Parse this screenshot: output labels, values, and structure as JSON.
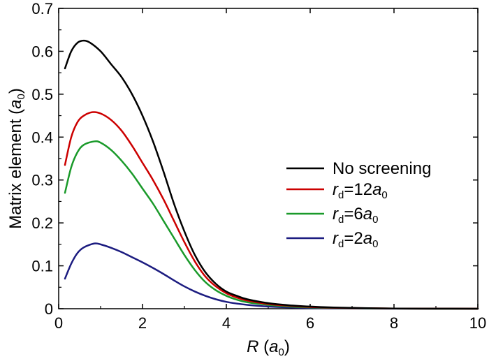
{
  "chart_data": {
    "type": "line",
    "title": "",
    "xlabel": {
      "var": "R",
      "unit_open": "(",
      "unit_var": "a",
      "unit_sub": "0",
      "unit_close": ")"
    },
    "ylabel": {
      "text": "Matrix element ",
      "unit_open": "(",
      "unit_var": "a",
      "unit_sub": "0",
      "unit_close": ")"
    },
    "xlim": [
      0,
      10
    ],
    "ylim": [
      0,
      0.7
    ],
    "xticks": [
      "0",
      "2",
      "4",
      "6",
      "8",
      "10"
    ],
    "yticks": [
      "0",
      "0.1",
      "0.2",
      "0.3",
      "0.4",
      "0.5",
      "0.6",
      "0.7"
    ],
    "grid": false,
    "legend_position": "center-right",
    "series": [
      {
        "name": "No screening",
        "legend": {
          "plain": "No screening"
        },
        "color": "#000000",
        "x": [
          0.15,
          0.3,
          0.45,
          0.6,
          0.75,
          1.0,
          1.25,
          1.5,
          1.75,
          2.0,
          2.25,
          2.5,
          2.75,
          3.0,
          3.25,
          3.5,
          3.75,
          4.0,
          4.25,
          4.5,
          5.0,
          5.5,
          6.0,
          6.5,
          7.0,
          7.5,
          8.0,
          9.0,
          10.0
        ],
        "y": [
          0.56,
          0.6,
          0.62,
          0.625,
          0.62,
          0.6,
          0.57,
          0.54,
          0.5,
          0.45,
          0.39,
          0.32,
          0.245,
          0.18,
          0.125,
          0.085,
          0.058,
          0.04,
          0.03,
          0.022,
          0.013,
          0.008,
          0.005,
          0.003,
          0.002,
          0.001,
          0.0005,
          0.0002,
          0.0
        ]
      },
      {
        "name": "rd=12a0",
        "legend": {
          "var": "r",
          "sub": "d",
          "eq": "=12",
          "unit_var": "a",
          "unit_sub": "0"
        },
        "color": "#cc0000",
        "x": [
          0.15,
          0.3,
          0.45,
          0.6,
          0.8,
          1.0,
          1.25,
          1.5,
          1.75,
          2.0,
          2.25,
          2.5,
          2.75,
          3.0,
          3.25,
          3.5,
          3.75,
          4.0,
          4.25,
          4.5,
          5.0,
          5.5,
          6.0,
          6.5,
          7.0,
          7.5,
          8.0,
          9.0,
          10.0
        ],
        "y": [
          0.335,
          0.4,
          0.435,
          0.45,
          0.458,
          0.455,
          0.44,
          0.415,
          0.38,
          0.34,
          0.3,
          0.255,
          0.205,
          0.155,
          0.11,
          0.075,
          0.052,
          0.036,
          0.026,
          0.019,
          0.011,
          0.007,
          0.004,
          0.0025,
          0.0015,
          0.001,
          0.0005,
          0.0002,
          0.0
        ]
      },
      {
        "name": "rd=6a0",
        "legend": {
          "var": "r",
          "sub": "d",
          "eq": "=6",
          "unit_var": "a",
          "unit_sub": "0"
        },
        "color": "#1a9a2a",
        "x": [
          0.15,
          0.3,
          0.45,
          0.6,
          0.85,
          1.0,
          1.25,
          1.5,
          1.75,
          2.0,
          2.25,
          2.5,
          2.75,
          3.0,
          3.25,
          3.5,
          3.75,
          4.0,
          4.25,
          4.5,
          5.0,
          5.5,
          6.0,
          6.5,
          7.0,
          7.5,
          8.0,
          9.0,
          10.0
        ],
        "y": [
          0.27,
          0.33,
          0.365,
          0.382,
          0.39,
          0.387,
          0.37,
          0.345,
          0.315,
          0.28,
          0.245,
          0.205,
          0.165,
          0.125,
          0.09,
          0.062,
          0.043,
          0.03,
          0.021,
          0.015,
          0.009,
          0.005,
          0.003,
          0.002,
          0.001,
          0.0007,
          0.0004,
          0.0001,
          0.0
        ]
      },
      {
        "name": "rd=2a0",
        "legend": {
          "var": "r",
          "sub": "d",
          "eq": "=2",
          "unit_var": "a",
          "unit_sub": "0"
        },
        "color": "#1c1c80",
        "x": [
          0.15,
          0.3,
          0.45,
          0.6,
          0.85,
          1.0,
          1.25,
          1.5,
          1.75,
          2.0,
          2.25,
          2.5,
          2.75,
          3.0,
          3.25,
          3.5,
          3.75,
          4.0,
          4.25,
          4.5,
          5.0,
          5.5,
          6.0,
          7.0,
          8.0,
          9.0,
          10.0
        ],
        "y": [
          0.07,
          0.105,
          0.13,
          0.143,
          0.152,
          0.15,
          0.142,
          0.132,
          0.12,
          0.108,
          0.095,
          0.081,
          0.066,
          0.052,
          0.04,
          0.03,
          0.022,
          0.016,
          0.012,
          0.009,
          0.005,
          0.003,
          0.0015,
          0.0005,
          0.0002,
          0.0001,
          0.0
        ]
      }
    ]
  }
}
